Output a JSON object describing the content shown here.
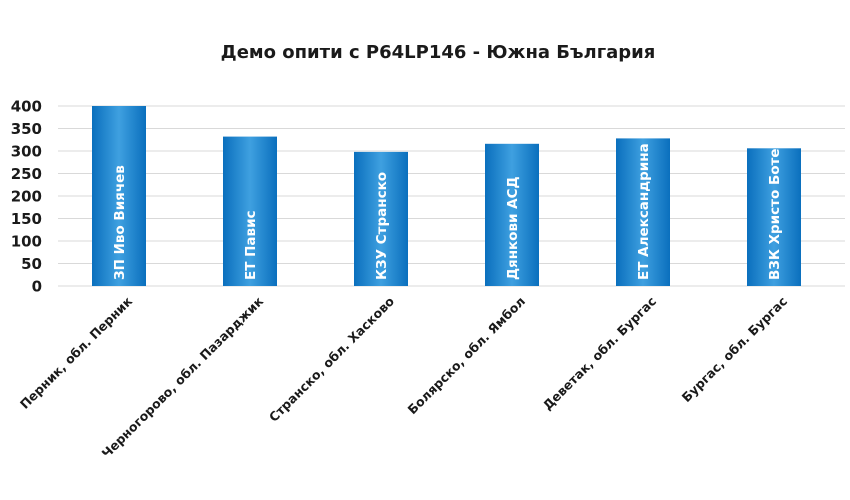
{
  "chart_data": {
    "type": "bar",
    "title": "Демо опити с P64LP146 - Южна България",
    "categories": [
      "Перник, обл. Перник",
      "Черногорово, обл. Пазарджик",
      "Странско, обл. Хасково",
      "Болярско, обл. Ямбол",
      "Деветак, обл. Бургас",
      "Бургас, обл. Бургас"
    ],
    "bar_labels": [
      "ЗП Иво Виячев",
      "ЕТ Павис",
      "КЗУ Странско",
      "Дянкови АСД",
      "ЕТ Александрина",
      "ВЗК Христо Ботев"
    ],
    "values": [
      400,
      332,
      298,
      316,
      328,
      306
    ],
    "ylim": [
      0,
      400
    ],
    "yticks": [
      0,
      50,
      100,
      150,
      200,
      250,
      300,
      350,
      400
    ],
    "grid": true,
    "legend": "none",
    "colors": {
      "bar_light": "#3fa0e0",
      "bar_dark": "#0a6fbd",
      "text": "#1a1a1a"
    }
  }
}
